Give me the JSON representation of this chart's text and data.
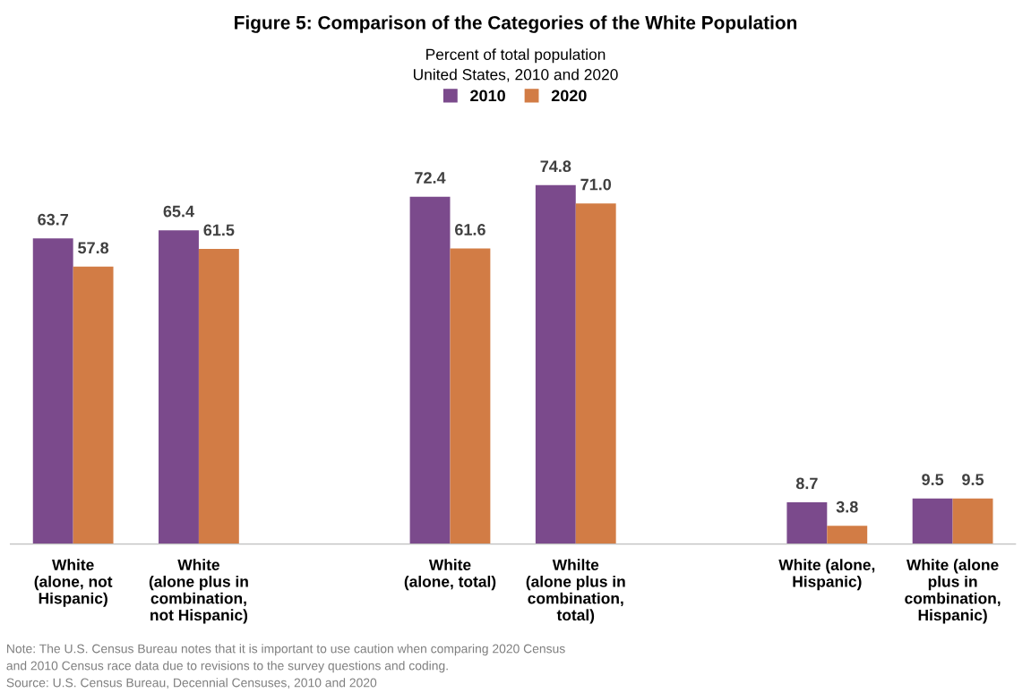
{
  "chart_data": {
    "type": "bar",
    "title": "Figure 5: Comparison of the Categories of the White Population",
    "subtitle": "Percent of total population\nUnited States, 2010 and 2020",
    "categories": [
      "White\n(alone, not\nHispanic)",
      "White\n(alone plus in\ncombination,\nnot Hispanic)",
      null,
      "White\n(alone, total)",
      "Whilte\n(alone plus in\ncombination,\ntotal)",
      null,
      "White (alone,\nHispanic)",
      "White (alone\nplus in\ncombination,\nHispanic)"
    ],
    "series": [
      {
        "name": "2010",
        "color": "#7b4a8c",
        "values": [
          63.7,
          65.4,
          null,
          72.4,
          74.8,
          null,
          8.7,
          9.5
        ],
        "value_labels": [
          "63.7",
          "65.4",
          null,
          "72.4",
          "74.8",
          null,
          "8.7",
          "9.5"
        ]
      },
      {
        "name": "2020",
        "color": "#d27c45",
        "values": [
          57.8,
          61.5,
          null,
          61.6,
          71.0,
          null,
          3.8,
          9.5
        ],
        "value_labels": [
          "57.8",
          "61.5",
          null,
          "61.6",
          "71.0",
          null,
          "3.8",
          "9.5"
        ]
      }
    ],
    "legend": "top",
    "grid": false,
    "tick_labels": "x",
    "annotations": [
      "Note: The U.S. Census Bureau notes that it is important to use caution when comparing 2020 Census\nand 2010 Census race data due to revisions to the survey questions and coding.\nSource: U.S. Census Bureau, Decennial Censuses, 2010 and 2020"
    ]
  }
}
